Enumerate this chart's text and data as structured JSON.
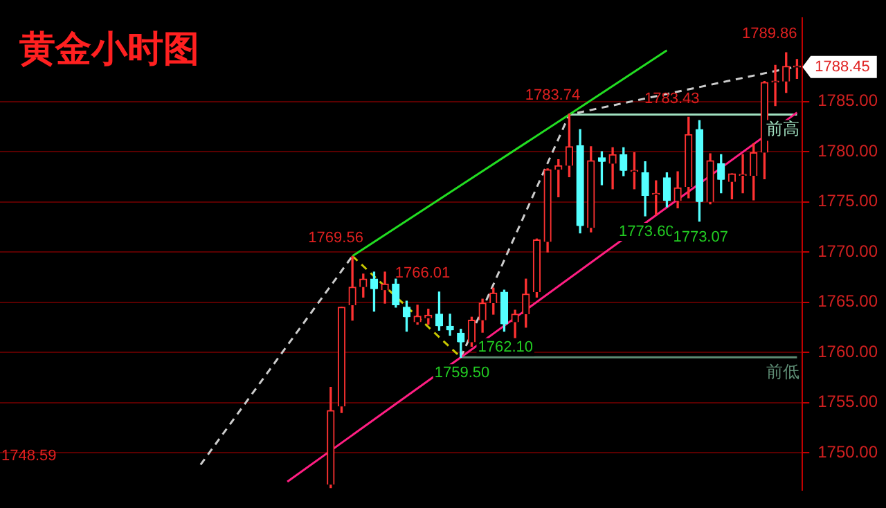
{
  "chart_data": {
    "type": "candlestick",
    "title": "黄金小时图",
    "categories": [
      null,
      null,
      null,
      null,
      null,
      null,
      null,
      null,
      null,
      null,
      null,
      null,
      null,
      null,
      null,
      null,
      null,
      null,
      null,
      null,
      null,
      null,
      null,
      null,
      null,
      null,
      null,
      null,
      null,
      null,
      null,
      null,
      null,
      null,
      null,
      null,
      null,
      null,
      null,
      null,
      null,
      null,
      null,
      null,
      null,
      null,
      null,
      null,
      null,
      null,
      null,
      null,
      null,
      null,
      null,
      null,
      null,
      null,
      null,
      null,
      null,
      null,
      null,
      null,
      null,
      null,
      null,
      null,
      null,
      null,
      null,
      null,
      null,
      null
    ],
    "ohlc": [
      null,
      null,
      null,
      null,
      null,
      null,
      null,
      null,
      null,
      null,
      null,
      null,
      null,
      null,
      null,
      null,
      null,
      null,
      null,
      null,
      null,
      null,
      null,
      null,
      null,
      null,
      null,
      null,
      null,
      null,
      [
        1746.8,
        1756.5,
        1746.5,
        1754.2
      ],
      [
        1754.6,
        1764.5,
        1754.0,
        1764.5
      ],
      [
        1764.7,
        1769.56,
        1763.2,
        1766.5
      ],
      [
        1766.5,
        1767.8,
        1765.5,
        1767.3
      ],
      [
        1767.3,
        1768.0,
        1764.1,
        1766.3
      ],
      [
        1766.2,
        1768.0,
        1764.9,
        1766.8
      ],
      [
        1766.8,
        1767.3,
        1764.5,
        1764.7
      ],
      [
        1764.5,
        1765.1,
        1762.1,
        1763.5
      ],
      [
        1763.0,
        1764.7,
        1762.8,
        1763.6
      ],
      [
        1763.4,
        1764.3,
        1762.8,
        1763.7
      ],
      [
        1763.8,
        1766.01,
        1762.2,
        1762.6
      ],
      [
        1762.6,
        1763.8,
        1761.7,
        1762.2
      ],
      [
        1761.9,
        1762.3,
        1759.5,
        1761.0
      ],
      [
        1761.0,
        1763.5,
        1760.6,
        1763.2
      ],
      [
        1763.2,
        1765.3,
        1762.0,
        1764.9
      ],
      [
        1764.9,
        1766.4,
        1763.8,
        1765.9
      ],
      [
        1766.0,
        1766.2,
        1762.1,
        1762.8
      ],
      [
        1763.0,
        1764.2,
        1761.3,
        1763.8
      ],
      [
        1763.8,
        1767.3,
        1762.5,
        1765.8
      ],
      [
        1766.0,
        1771.3,
        1765.5,
        1771.2
      ],
      [
        1771.0,
        1778.3,
        1770.0,
        1778.2
      ],
      [
        1778.2,
        1779.2,
        1775.5,
        1778.6
      ],
      [
        1778.6,
        1783.74,
        1777.5,
        1780.5
      ],
      [
        1780.6,
        1782.2,
        1771.9,
        1772.6
      ],
      [
        1772.4,
        1780.5,
        1772.0,
        1779.1
      ],
      [
        1779.4,
        1780.0,
        1776.7,
        1779.0
      ],
      [
        1778.8,
        1780.4,
        1776.3,
        1779.7
      ],
      [
        1779.7,
        1780.4,
        1777.6,
        1778.1
      ],
      [
        1778.0,
        1779.9,
        1776.3,
        1778.1
      ],
      [
        1777.9,
        1779.0,
        1773.6,
        1775.6
      ],
      [
        1775.7,
        1777.1,
        1773.7,
        1775.8
      ],
      [
        1777.4,
        1777.9,
        1774.5,
        1775.1
      ],
      [
        1775.1,
        1778.0,
        1774.4,
        1776.4
      ],
      [
        1776.5,
        1783.43,
        1775.4,
        1781.7
      ],
      [
        1782.2,
        1783.1,
        1773.07,
        1775.0
      ],
      [
        1775.0,
        1779.8,
        1774.8,
        1779.1
      ],
      [
        1778.8,
        1779.7,
        1775.9,
        1777.2
      ],
      [
        1777.0,
        1777.8,
        1775.3,
        1777.8
      ],
      [
        1777.6,
        1779.7,
        1775.9,
        1777.7
      ],
      [
        1777.6,
        1780.8,
        1775.2,
        1779.9
      ],
      [
        1779.9,
        1787.0,
        1777.3,
        1786.9
      ],
      [
        1786.9,
        1788.6,
        1784.6,
        1787.0
      ],
      [
        1787.0,
        1789.86,
        1785.9,
        1788.5
      ],
      [
        1788.4,
        1789.2,
        1787.3,
        1788.45
      ]
    ],
    "series": [
      {
        "type": "line",
        "color": "#22dd22",
        "line_style": "solid",
        "values": [
          null,
          null,
          null,
          null,
          null,
          null,
          null,
          null,
          null,
          null,
          null,
          null,
          null,
          null,
          null,
          null,
          null,
          null,
          null,
          null,
          null,
          null,
          null,
          null,
          null,
          null,
          null,
          null,
          null,
          null,
          null,
          null,
          1769.6,
          null,
          null,
          null,
          null,
          null,
          null,
          null,
          null,
          null,
          null,
          null,
          null,
          null,
          null,
          null,
          null,
          null,
          null,
          null,
          1783.7,
          null,
          null,
          null,
          null,
          null,
          null,
          null,
          null,
          1790.1,
          null,
          null,
          null,
          null,
          null,
          null,
          null,
          null,
          null,
          null,
          null,
          null
        ]
      },
      {
        "type": "line",
        "color": "#ff1e82",
        "line_style": "solid",
        "values": [
          null,
          null,
          null,
          null,
          null,
          null,
          null,
          null,
          null,
          null,
          null,
          null,
          null,
          null,
          null,
          null,
          null,
          null,
          null,
          null,
          null,
          null,
          null,
          null,
          null,
          null,
          1747.1,
          null,
          null,
          null,
          null,
          null,
          null,
          null,
          null,
          null,
          null,
          null,
          null,
          null,
          null,
          null,
          1759.5,
          null,
          null,
          null,
          null,
          null,
          null,
          null,
          null,
          null,
          null,
          null,
          null,
          null,
          null,
          null,
          null,
          null,
          null,
          null,
          null,
          null,
          null,
          null,
          null,
          null,
          null,
          null,
          null,
          null,
          null,
          1783.9
        ]
      },
      {
        "type": "line",
        "color": "#cccccc",
        "line_style": "dashed",
        "values": [
          null,
          null,
          null,
          null,
          null,
          null,
          null,
          null,
          null,
          null,
          null,
          null,
          null,
          null,
          null,
          null,
          null,
          null,
          1748.8,
          null,
          null,
          null,
          null,
          null,
          null,
          null,
          null,
          null,
          null,
          null,
          null,
          null,
          1769.6,
          null,
          null,
          null,
          null,
          null,
          null,
          null,
          null,
          null,
          null,
          null,
          null,
          null,
          null,
          null,
          null,
          null,
          null,
          null,
          null,
          null,
          null,
          null,
          null,
          null,
          null,
          null,
          null,
          null,
          null,
          null,
          null,
          null,
          null,
          null,
          null,
          null,
          null,
          null,
          null,
          null
        ]
      },
      {
        "type": "line",
        "color": "#c8c800",
        "line_style": "dashed",
        "values": [
          null,
          null,
          null,
          null,
          null,
          null,
          null,
          null,
          null,
          null,
          null,
          null,
          null,
          null,
          null,
          null,
          null,
          null,
          null,
          null,
          null,
          null,
          null,
          null,
          null,
          null,
          null,
          null,
          null,
          null,
          null,
          null,
          1769.6,
          null,
          null,
          null,
          null,
          null,
          null,
          null,
          null,
          null,
          1759.5,
          null,
          null,
          null,
          null,
          null,
          null,
          null,
          null,
          null,
          null,
          null,
          null,
          null,
          null,
          null,
          null,
          null,
          null,
          null,
          null,
          null,
          null,
          null,
          null,
          null,
          null,
          null,
          null,
          null,
          null,
          null
        ]
      },
      {
        "type": "line",
        "color": "#cccccc",
        "line_style": "dashed",
        "values": [
          null,
          null,
          null,
          null,
          null,
          null,
          null,
          null,
          null,
          null,
          null,
          null,
          null,
          null,
          null,
          null,
          null,
          null,
          null,
          null,
          null,
          null,
          null,
          null,
          null,
          null,
          null,
          null,
          null,
          null,
          null,
          null,
          null,
          null,
          null,
          null,
          null,
          null,
          null,
          null,
          null,
          null,
          1759.5,
          null,
          null,
          null,
          null,
          null,
          null,
          null,
          null,
          null,
          1783.7,
          null,
          null,
          null,
          null,
          null,
          null,
          null,
          null,
          null,
          null,
          null,
          null,
          null,
          null,
          null,
          null,
          null,
          null,
          null,
          null,
          1788.5
        ]
      },
      {
        "type": "line",
        "name": "前高",
        "color": "#a0e0c0",
        "line_style": "solid",
        "values": [
          null,
          null,
          null,
          null,
          null,
          null,
          null,
          null,
          null,
          null,
          null,
          null,
          null,
          null,
          null,
          null,
          null,
          null,
          null,
          null,
          null,
          null,
          null,
          null,
          null,
          null,
          null,
          null,
          null,
          null,
          null,
          null,
          null,
          null,
          null,
          null,
          null,
          null,
          null,
          null,
          null,
          null,
          null,
          null,
          null,
          null,
          null,
          null,
          null,
          null,
          null,
          null,
          1783.7,
          null,
          null,
          null,
          null,
          null,
          null,
          null,
          null,
          null,
          null,
          null,
          null,
          null,
          null,
          null,
          null,
          null,
          null,
          null,
          null,
          1783.7
        ]
      },
      {
        "type": "line",
        "name": "前低",
        "color": "#5e8c74",
        "line_style": "solid",
        "values": [
          null,
          null,
          null,
          null,
          null,
          null,
          null,
          null,
          null,
          null,
          null,
          null,
          null,
          null,
          null,
          null,
          null,
          null,
          null,
          null,
          null,
          null,
          null,
          null,
          null,
          null,
          null,
          null,
          null,
          null,
          null,
          null,
          null,
          null,
          null,
          null,
          null,
          null,
          null,
          null,
          null,
          null,
          1759.5,
          null,
          null,
          null,
          null,
          null,
          null,
          null,
          null,
          null,
          null,
          null,
          null,
          null,
          null,
          null,
          null,
          null,
          null,
          null,
          null,
          null,
          null,
          null,
          null,
          null,
          null,
          null,
          null,
          null,
          null,
          1759.5
        ]
      }
    ],
    "annotations": [
      "1748.59",
      "1769.56",
      "1766.01",
      "1762.10",
      "1759.50",
      "1783.74",
      "1783.43",
      "1773.60",
      "1773.07",
      "1789.86",
      "1788.45"
    ],
    "ylim": [
      1746.3,
      1793.3
    ],
    "yticks": [
      {
        "value": 1750,
        "label": "1750.00"
      },
      {
        "value": 1755,
        "label": "1755.00"
      },
      {
        "value": 1760,
        "label": "1760.00"
      },
      {
        "value": 1765,
        "label": "1765.00"
      },
      {
        "value": 1770,
        "label": "1770.00"
      },
      {
        "value": 1775,
        "label": "1775.00"
      },
      {
        "value": 1780,
        "label": "1780.00"
      },
      {
        "value": 1785,
        "label": "1785.00"
      }
    ],
    "grid": "y",
    "tick_labels": "y",
    "legend": false
  }
}
